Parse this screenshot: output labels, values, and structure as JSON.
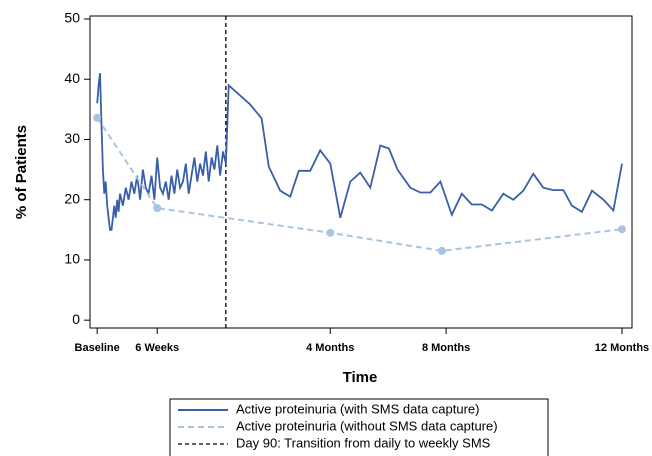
{
  "chart_data": {
    "type": "line",
    "xlabel": "Time",
    "ylabel": "% of Patients",
    "xlim": [
      -5,
      374
    ],
    "ylim": [
      -1.3,
      50.5
    ],
    "xticks": [
      {
        "value": 0,
        "label": "Baseline"
      },
      {
        "value": 42,
        "label": "6 Weeks"
      },
      {
        "value": 163,
        "label": "4 Months"
      },
      {
        "value": 244,
        "label": "8 Months"
      },
      {
        "value": 367,
        "label": "12 Months"
      }
    ],
    "yticks": [
      0,
      10,
      20,
      30,
      40,
      50
    ],
    "series": [
      {
        "name": "Active proteinuria (with SMS data capture)",
        "color": "#3a5fa8",
        "style": "solid",
        "markers": false,
        "x": [
          0,
          1,
          2,
          3,
          4,
          5,
          6,
          7,
          8,
          9,
          10,
          11,
          12,
          13,
          14,
          15,
          16,
          18,
          20,
          22,
          24,
          26,
          28,
          30,
          32,
          34,
          36,
          38,
          40,
          42,
          44,
          46,
          48,
          50,
          52,
          54,
          56,
          58,
          60,
          62,
          64,
          66,
          68,
          70,
          72,
          74,
          76,
          78,
          80,
          82,
          84,
          86,
          88,
          90,
          92,
          107,
          115,
          120,
          128,
          135,
          141,
          149,
          156,
          163,
          170,
          177,
          184,
          191,
          198,
          204,
          210,
          219,
          226,
          233,
          240,
          248,
          255,
          262,
          269,
          276,
          284,
          291,
          298,
          305,
          312,
          319,
          326,
          332,
          339,
          346,
          354,
          361,
          367
        ],
        "values": [
          36,
          39,
          41,
          33,
          25,
          21,
          23,
          19,
          17,
          15,
          15,
          17,
          19,
          17,
          20,
          18,
          21,
          19,
          22,
          20,
          23,
          21,
          24,
          20,
          25,
          22,
          21,
          24,
          20,
          27,
          22,
          21,
          23,
          20,
          24,
          21,
          25,
          22,
          23,
          26,
          21,
          24,
          27,
          23,
          26,
          24,
          28,
          23,
          27,
          25,
          29,
          24,
          28,
          26,
          39,
          35.8,
          33.5,
          25.5,
          21.5,
          20.5,
          24.8,
          24.8,
          28.2,
          26,
          17,
          23,
          24.5,
          22,
          29,
          28.5,
          25,
          22,
          21.2,
          21.2,
          23,
          17.5,
          21,
          19.2,
          19.2,
          18.2,
          21,
          20,
          21.5,
          24.3,
          22,
          21.6,
          21.6,
          19,
          18,
          21.5,
          20,
          18.2,
          26
        ]
      },
      {
        "name": "Active proteinuria (without SMS data capture)",
        "color": "#a9c4e0",
        "style": "dashed",
        "markers": true,
        "x": [
          0,
          42,
          163,
          241,
          367
        ],
        "values": [
          33.6,
          18.6,
          14.5,
          11.5,
          15.1
        ]
      }
    ],
    "reference_lines": [
      {
        "x": 90,
        "name": "Day 90: Transition from daily to weekly SMS",
        "color": "#000000"
      }
    ]
  }
}
